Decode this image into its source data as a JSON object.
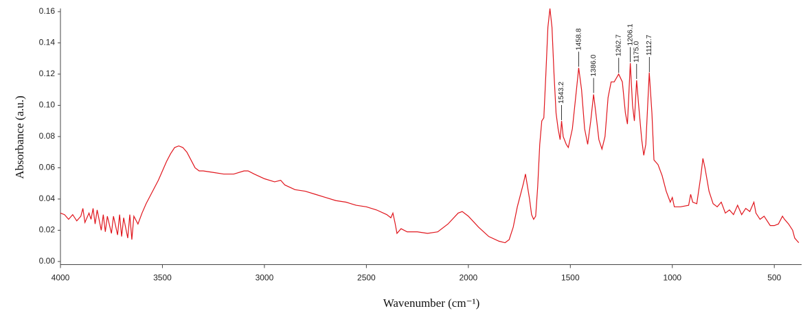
{
  "chart_data": {
    "type": "line",
    "x_label": "Wavenumber (cm⁻¹)",
    "y_label": "Absorbance (a.u.)",
    "xlim": [
      4000,
      366
    ],
    "ylim": [
      -0.002,
      0.162
    ],
    "xticks": [
      4000,
      3500,
      3000,
      2500,
      2000,
      1500,
      1000,
      500
    ],
    "yticks": [
      {
        "value": 0,
        "label": "0.00"
      },
      {
        "value": 0.02,
        "label": "0.02"
      },
      {
        "value": 0.04,
        "label": "0.04"
      },
      {
        "value": 0.06,
        "label": "0.06"
      },
      {
        "value": 0.08,
        "label": "0.08"
      },
      {
        "value": 0.1,
        "label": "0.10"
      },
      {
        "value": 0.12,
        "label": "0.12"
      },
      {
        "value": 0.14,
        "label": "0.14"
      },
      {
        "value": 0.16,
        "label": "0.16"
      }
    ],
    "color": "#e0141b",
    "grid": false,
    "x": [
      4000,
      3980,
      3960,
      3940,
      3920,
      3900,
      3890,
      3880,
      3860,
      3850,
      3840,
      3830,
      3820,
      3800,
      3790,
      3780,
      3770,
      3750,
      3740,
      3720,
      3710,
      3700,
      3690,
      3670,
      3660,
      3650,
      3640,
      3620,
      3600,
      3580,
      3560,
      3540,
      3520,
      3500,
      3480,
      3460,
      3440,
      3420,
      3400,
      3380,
      3360,
      3340,
      3320,
      3300,
      3250,
      3200,
      3150,
      3100,
      3080,
      3050,
      3000,
      2950,
      2920,
      2900,
      2850,
      2800,
      2750,
      2700,
      2650,
      2600,
      2550,
      2500,
      2450,
      2400,
      2380,
      2370,
      2360,
      2350,
      2330,
      2300,
      2250,
      2200,
      2150,
      2100,
      2050,
      2030,
      2000,
      1950,
      1900,
      1850,
      1820,
      1800,
      1780,
      1760,
      1740,
      1730,
      1720,
      1710,
      1700,
      1690,
      1680,
      1670,
      1660,
      1650,
      1640,
      1630,
      1620,
      1610,
      1600,
      1590,
      1580,
      1570,
      1560,
      1550,
      1543,
      1535,
      1520,
      1510,
      1490,
      1470,
      1459,
      1445,
      1430,
      1415,
      1400,
      1386,
      1375,
      1360,
      1345,
      1330,
      1315,
      1300,
      1285,
      1263,
      1245,
      1230,
      1220,
      1206,
      1195,
      1186,
      1175,
      1165,
      1150,
      1140,
      1130,
      1113,
      1100,
      1090,
      1070,
      1050,
      1030,
      1010,
      1000,
      990,
      960,
      920,
      910,
      900,
      880,
      860,
      850,
      840,
      820,
      800,
      780,
      760,
      740,
      720,
      700,
      680,
      660,
      640,
      620,
      600,
      590,
      570,
      550,
      520,
      500,
      480,
      460,
      450,
      430,
      410,
      400,
      380
    ],
    "y": [
      0.031,
      0.03,
      0.027,
      0.03,
      0.026,
      0.029,
      0.034,
      0.025,
      0.031,
      0.027,
      0.034,
      0.024,
      0.033,
      0.02,
      0.03,
      0.019,
      0.029,
      0.018,
      0.029,
      0.017,
      0.03,
      0.016,
      0.028,
      0.015,
      0.03,
      0.014,
      0.029,
      0.024,
      0.031,
      0.037,
      0.042,
      0.047,
      0.052,
      0.058,
      0.064,
      0.069,
      0.073,
      0.074,
      0.073,
      0.07,
      0.065,
      0.06,
      0.058,
      0.058,
      0.057,
      0.056,
      0.056,
      0.058,
      0.058,
      0.056,
      0.053,
      0.051,
      0.052,
      0.049,
      0.046,
      0.045,
      0.043,
      0.041,
      0.039,
      0.038,
      0.036,
      0.035,
      0.033,
      0.03,
      0.028,
      0.031,
      0.025,
      0.018,
      0.021,
      0.019,
      0.019,
      0.018,
      0.019,
      0.024,
      0.031,
      0.032,
      0.029,
      0.022,
      0.016,
      0.013,
      0.012,
      0.014,
      0.022,
      0.035,
      0.045,
      0.05,
      0.056,
      0.048,
      0.04,
      0.03,
      0.027,
      0.029,
      0.048,
      0.075,
      0.09,
      0.092,
      0.12,
      0.15,
      0.162,
      0.15,
      0.12,
      0.095,
      0.085,
      0.078,
      0.09,
      0.08,
      0.075,
      0.073,
      0.085,
      0.11,
      0.124,
      0.11,
      0.085,
      0.075,
      0.09,
      0.107,
      0.095,
      0.078,
      0.072,
      0.08,
      0.105,
      0.115,
      0.115,
      0.12,
      0.115,
      0.095,
      0.088,
      0.127,
      0.1,
      0.09,
      0.116,
      0.1,
      0.078,
      0.068,
      0.075,
      0.121,
      0.095,
      0.065,
      0.062,
      0.055,
      0.045,
      0.038,
      0.041,
      0.035,
      0.035,
      0.036,
      0.043,
      0.038,
      0.037,
      0.055,
      0.066,
      0.06,
      0.045,
      0.037,
      0.035,
      0.038,
      0.031,
      0.033,
      0.03,
      0.036,
      0.03,
      0.034,
      0.032,
      0.038,
      0.031,
      0.027,
      0.029,
      0.023,
      0.023,
      0.024,
      0.029,
      0.027,
      0.024,
      0.02,
      0.015,
      0.012
    ],
    "annotations": [
      {
        "x": 1543.2,
        "label": "1543.2"
      },
      {
        "x": 1458.8,
        "label": "1458.8"
      },
      {
        "x": 1386.0,
        "label": "1386.0"
      },
      {
        "x": 1262.7,
        "label": "1262.7"
      },
      {
        "x": 1206.1,
        "label": "1206.1"
      },
      {
        "x": 1175.0,
        "label": "1175.0"
      },
      {
        "x": 1112.7,
        "label": "1112.7"
      }
    ]
  }
}
